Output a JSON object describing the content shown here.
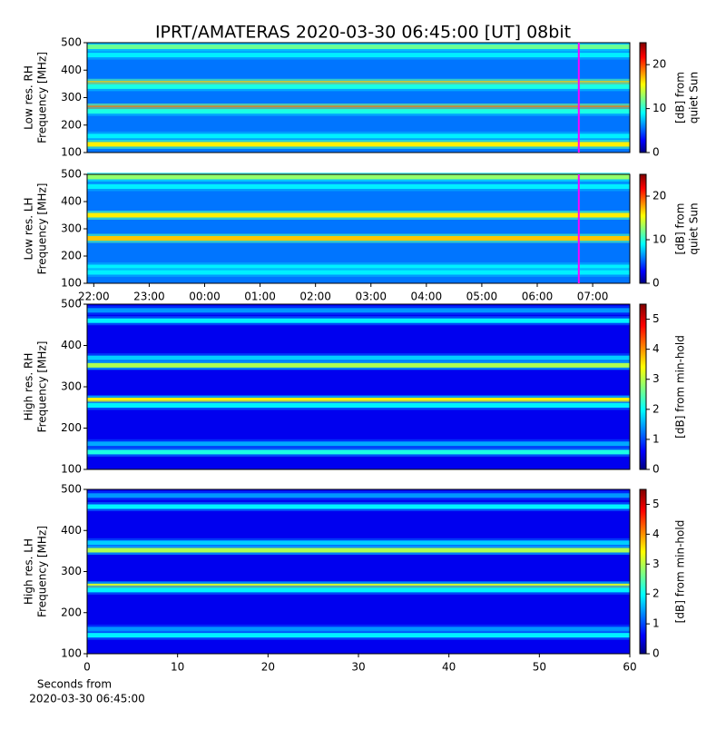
{
  "chart_data": [
    {
      "type": "heatmap",
      "title": "IPRT/AMATERAS 2020-03-30 06:45:00 [UT]   08bit",
      "ylabel": [
        "Low res. RH",
        "Frequency [MHz]"
      ],
      "ylim": [
        100,
        500
      ],
      "yticks": [
        100,
        200,
        300,
        400,
        500
      ],
      "xlim": [
        21.88,
        31.67
      ],
      "marker": 30.75,
      "marker_color": "#ff00ff",
      "colorbar": {
        "label": [
          "[dB] from",
          "quiet Sun"
        ],
        "lim": [
          0,
          25
        ],
        "ticks": [
          0,
          10,
          20
        ]
      },
      "background": 6,
      "bands": [
        {
          "frequency": 485,
          "value": 12
        },
        {
          "frequency": 455,
          "value": 9
        },
        {
          "frequency": 352,
          "value": 17
        },
        {
          "frequency": 340,
          "value": 10
        },
        {
          "frequency": 262,
          "value": 19
        },
        {
          "frequency": 250,
          "value": 10
        },
        {
          "frequency": 160,
          "value": 9
        },
        {
          "frequency": 130,
          "value": 16
        }
      ]
    },
    {
      "type": "heatmap",
      "ylabel": [
        "Low res. LH",
        "Frequency [MHz]"
      ],
      "ylim": [
        100,
        500
      ],
      "yticks": [
        100,
        200,
        300,
        400,
        500
      ],
      "xlim": [
        21.88,
        31.67
      ],
      "marker": 30.75,
      "marker_color": "#ff00ff",
      "xticks": [
        {
          "value": 22,
          "label": "22:00"
        },
        {
          "value": 23,
          "label": "23:00"
        },
        {
          "value": 24,
          "label": "00:00"
        },
        {
          "value": 25,
          "label": "01:00"
        },
        {
          "value": 26,
          "label": "02:00"
        },
        {
          "value": 27,
          "label": "03:00"
        },
        {
          "value": 28,
          "label": "04:00"
        },
        {
          "value": 29,
          "label": "05:00"
        },
        {
          "value": 30,
          "label": "06:00"
        },
        {
          "value": 31,
          "label": "07:00"
        }
      ],
      "colorbar": {
        "label": [
          "[dB] from",
          "quiet Sun"
        ],
        "lim": [
          0,
          25
        ],
        "ticks": [
          0,
          10,
          20
        ]
      },
      "background": 6,
      "bands": [
        {
          "frequency": 490,
          "value": 13
        },
        {
          "frequency": 455,
          "value": 9
        },
        {
          "frequency": 350,
          "value": 16
        },
        {
          "frequency": 265,
          "value": 17
        },
        {
          "frequency": 160,
          "value": 9
        },
        {
          "frequency": 140,
          "value": 9
        }
      ]
    },
    {
      "type": "heatmap",
      "ylabel": [
        "High res. RH",
        "Frequency [MHz]"
      ],
      "ylim": [
        100,
        500
      ],
      "yticks": [
        100,
        200,
        300,
        400,
        500
      ],
      "colorbar": {
        "label": [
          "[dB] from min-hold"
        ],
        "lim": [
          0,
          5.5
        ],
        "ticks": [
          0,
          1,
          2,
          3,
          4,
          5
        ]
      },
      "background": 0.6,
      "bands": [
        {
          "frequency": 485,
          "value": 1.5
        },
        {
          "frequency": 460,
          "value": 2
        },
        {
          "frequency": 370,
          "value": 1.8
        },
        {
          "frequency": 352,
          "value": 3
        },
        {
          "frequency": 268,
          "value": 3.5
        },
        {
          "frequency": 255,
          "value": 2
        },
        {
          "frequency": 162,
          "value": 1.6
        },
        {
          "frequency": 142,
          "value": 2.2
        }
      ]
    },
    {
      "type": "heatmap",
      "ylabel": [
        "High res. LH",
        "Frequency [MHz]"
      ],
      "ylim": [
        100,
        500
      ],
      "yticks": [
        100,
        200,
        300,
        400,
        500
      ],
      "xlim": [
        0,
        60
      ],
      "xticks": [
        0,
        10,
        20,
        30,
        40,
        50,
        60
      ],
      "xlabel": [
        "Seconds from",
        "2020-03-30 06:45:00"
      ],
      "colorbar": {
        "label": [
          "[dB] from min-hold"
        ],
        "lim": [
          0,
          5.5
        ],
        "ticks": [
          0,
          1,
          2,
          3,
          4,
          5
        ]
      },
      "background": 0.6,
      "bands": [
        {
          "frequency": 485,
          "value": 1.5
        },
        {
          "frequency": 458,
          "value": 2
        },
        {
          "frequency": 370,
          "value": 1.8
        },
        {
          "frequency": 352,
          "value": 3
        },
        {
          "frequency": 265,
          "value": 3.2
        },
        {
          "frequency": 255,
          "value": 2
        },
        {
          "frequency": 160,
          "value": 1.5
        },
        {
          "frequency": 145,
          "value": 2
        }
      ]
    }
  ]
}
